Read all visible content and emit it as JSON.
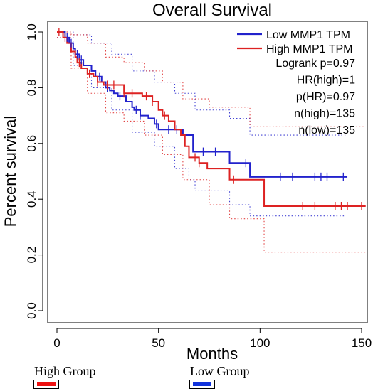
{
  "chart_data": {
    "type": "line",
    "title": "Overall Survival",
    "xlabel": "Months",
    "ylabel": "Percent survival",
    "xlim": [
      0,
      152
    ],
    "ylim": [
      0,
      1.0
    ],
    "xticks": [
      "0",
      "50",
      "100",
      "150"
    ],
    "yticks": [
      "0.0",
      "0.2",
      "0.4",
      "0.6",
      "0.8",
      "1.0"
    ],
    "legend": [
      "Low MMP1 TPM",
      "High MMP1 TPM"
    ],
    "stats": [
      "Logrank p=0.97",
      "HR(high)=1",
      "p(HR)=0.97",
      "n(high)=135",
      "n(low)=135"
    ],
    "series": [
      {
        "name": "Low MMP1 TPM",
        "color": "#2222cc",
        "x": [
          0,
          4,
          6,
          8,
          9,
          11,
          13,
          17,
          19,
          22,
          24,
          26,
          28,
          30,
          34,
          37,
          38,
          41,
          43,
          45,
          48,
          50,
          53,
          57,
          60,
          62,
          67,
          79,
          85,
          95,
          143
        ],
        "y": [
          1.0,
          0.98,
          0.96,
          0.94,
          0.92,
          0.9,
          0.88,
          0.86,
          0.84,
          0.82,
          0.8,
          0.79,
          0.78,
          0.77,
          0.75,
          0.73,
          0.72,
          0.7,
          0.7,
          0.69,
          0.67,
          0.65,
          0.65,
          0.65,
          0.65,
          0.63,
          0.57,
          0.57,
          0.53,
          0.48,
          0.48
        ]
      },
      {
        "name": "High MMP1 TPM",
        "color": "#dd2222",
        "x": [
          0,
          3,
          5,
          7,
          9,
          10,
          12,
          15,
          18,
          20,
          23,
          27,
          33,
          38,
          42,
          47,
          50,
          52,
          55,
          58,
          61,
          63,
          65,
          70,
          74,
          85,
          102,
          152
        ],
        "y": [
          1.0,
          0.98,
          0.96,
          0.93,
          0.91,
          0.89,
          0.87,
          0.85,
          0.84,
          0.82,
          0.81,
          0.81,
          0.78,
          0.78,
          0.77,
          0.75,
          0.72,
          0.7,
          0.68,
          0.65,
          0.63,
          0.59,
          0.55,
          0.53,
          0.51,
          0.47,
          0.375,
          0.375
        ]
      }
    ],
    "ci_upper": [
      {
        "name": "Low MMP1 TPM",
        "x": [
          0,
          8,
          17,
          27,
          37,
          48,
          58,
          68,
          85,
          95,
          142
        ],
        "y": [
          1.0,
          0.99,
          0.96,
          0.92,
          0.86,
          0.82,
          0.78,
          0.72,
          0.69,
          0.63,
          0.63
        ]
      },
      {
        "name": "High MMP1 TPM",
        "x": [
          0,
          7,
          15,
          24,
          33,
          43,
          52,
          62,
          75,
          95,
          102,
          152
        ],
        "y": [
          1.0,
          0.99,
          0.96,
          0.91,
          0.89,
          0.86,
          0.82,
          0.76,
          0.73,
          0.66,
          0.66,
          0.66
        ]
      }
    ],
    "ci_lower": [
      {
        "name": "Low MMP1 TPM",
        "x": [
          0,
          8,
          17,
          27,
          37,
          48,
          58,
          65,
          68,
          85,
          95,
          142
        ],
        "y": [
          0.98,
          0.88,
          0.8,
          0.72,
          0.64,
          0.59,
          0.51,
          0.47,
          0.43,
          0.38,
          0.34,
          0.34
        ]
      },
      {
        "name": "High MMP1 TPM",
        "x": [
          0,
          7,
          15,
          24,
          33,
          43,
          52,
          62,
          75,
          85,
          102,
          152
        ],
        "y": [
          0.98,
          0.87,
          0.78,
          0.71,
          0.68,
          0.63,
          0.56,
          0.47,
          0.38,
          0.33,
          0.21,
          0.21
        ]
      }
    ],
    "censor_marks": [
      {
        "name": "Low MMP1 TPM",
        "x": [
          5,
          7,
          10,
          12,
          21,
          25,
          31,
          39,
          41,
          49,
          55,
          59,
          72,
          78,
          93,
          110,
          116,
          127,
          130,
          133,
          141
        ]
      },
      {
        "name": "High MMP1 TPM",
        "x": [
          1,
          4,
          11,
          16,
          20,
          25,
          28,
          33,
          37,
          44,
          47,
          53,
          68,
          70,
          87,
          121,
          127,
          137,
          140,
          143,
          150
        ]
      }
    ],
    "grid": false,
    "legend_placement": "top-right"
  },
  "groups": {
    "high_label": "High Group",
    "low_label": "Low Group",
    "high_color": "#ee1111",
    "low_color": "#1133dd"
  }
}
